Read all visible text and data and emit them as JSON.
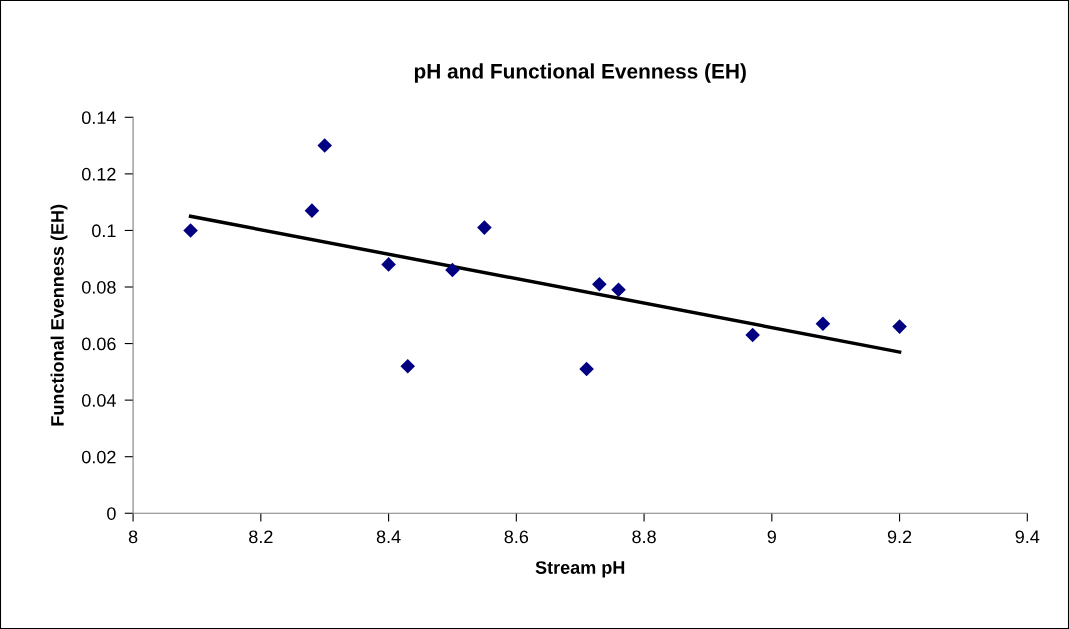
{
  "chart_data": {
    "type": "scatter",
    "title": "pH and Functional Evenness (EH)",
    "xlabel": "Stream pH",
    "ylabel": "Functional Evenness (EH)",
    "x": [
      8.09,
      8.28,
      8.3,
      8.4,
      8.43,
      8.5,
      8.55,
      8.71,
      8.73,
      8.76,
      8.97,
      9.08,
      9.2
    ],
    "series": [
      {
        "color": "#000080",
        "marker": "diamond",
        "values": [
          0.1,
          0.107,
          0.13,
          0.088,
          0.052,
          0.086,
          0.101,
          0.051,
          0.081,
          0.079,
          0.063,
          0.067,
          0.066
        ]
      },
      {
        "type": "line",
        "color": "#000000",
        "marker": "none",
        "line_style": "solid",
        "x": [
          8.09,
          9.2
        ],
        "values": [
          0.105,
          0.057
        ]
      }
    ],
    "xlim": [
      8,
      9.4
    ],
    "xticks": [
      8,
      8.2,
      8.4,
      8.6,
      8.8,
      9,
      9.2,
      9.4
    ],
    "ylim": [
      0,
      0.14
    ],
    "yticks": [
      0,
      0.02,
      0.04,
      0.06,
      0.08,
      0.1,
      0.12,
      0.14
    ],
    "grid": false,
    "legend": false
  }
}
